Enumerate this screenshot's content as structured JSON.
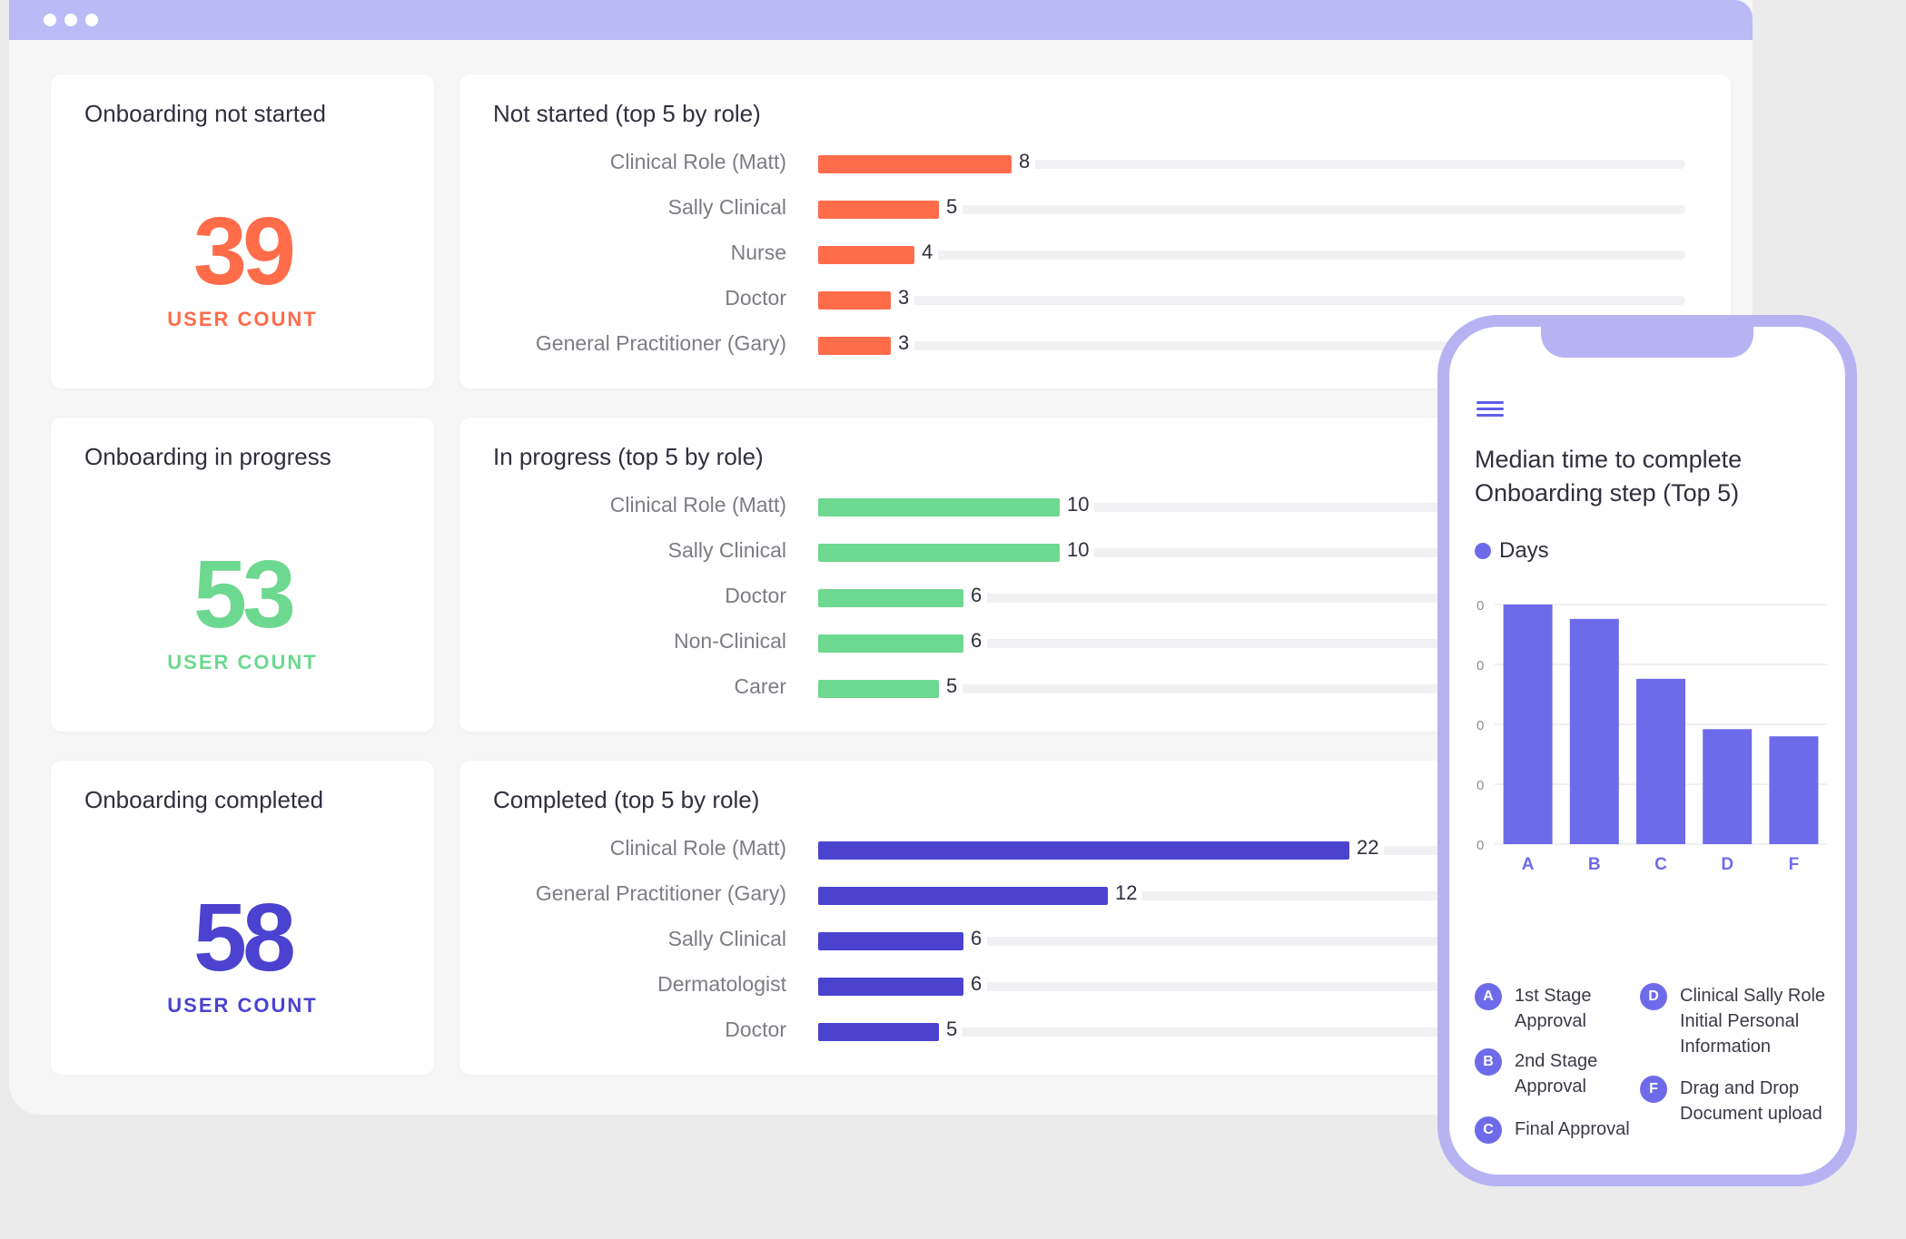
{
  "colors": {
    "not_started": "#fe6c4a",
    "in_progress": "#6dd88f",
    "completed": "#4b43cf",
    "phone_accent": "#6e6bea"
  },
  "sections": [
    {
      "stat_title": "Onboarding not started",
      "stat_value": "39",
      "stat_label": "USER COUNT",
      "chart_title": "Not started (top 5 by role)"
    },
    {
      "stat_title": "Onboarding in progress",
      "stat_value": "53",
      "stat_label": "USER COUNT",
      "chart_title": "In progress (top 5 by role)"
    },
    {
      "stat_title": "Onboarding completed",
      "stat_value": "58",
      "stat_label": "USER COUNT",
      "chart_title": "Completed (top 5 by role)"
    }
  ],
  "phone": {
    "title": "Median time to complete Onboarding step (Top 5)",
    "legend": "Days",
    "keys": [
      {
        "letter": "A",
        "text": "1st Stage Approval"
      },
      {
        "letter": "B",
        "text": "2nd Stage Approval"
      },
      {
        "letter": "C",
        "text": "Final Approval"
      },
      {
        "letter": "D",
        "text": "Clinical Sally Role Initial Personal Information"
      },
      {
        "letter": "F",
        "text": "Drag and Drop Document upload"
      }
    ]
  },
  "chart_data": [
    {
      "type": "bar",
      "title": "Not started (top 5 by role)",
      "categories": [
        "Clinical Role (Matt)",
        "Sally Clinical",
        "Nurse",
        "Doctor",
        "General Practitioner (Gary)"
      ],
      "values": [
        8,
        5,
        4,
        3,
        3
      ],
      "orientation": "horizontal"
    },
    {
      "type": "bar",
      "title": "In progress (top 5 by role)",
      "categories": [
        "Clinical Role (Matt)",
        "Sally Clinical",
        "Doctor",
        "Non-Clinical",
        "Carer"
      ],
      "values": [
        10,
        10,
        6,
        6,
        5
      ],
      "orientation": "horizontal"
    },
    {
      "type": "bar",
      "title": "Completed (top 5 by role)",
      "categories": [
        "Clinical Role (Matt)",
        "General Practitioner (Gary)",
        "Sally Clinical",
        "Dermatologist",
        "Doctor"
      ],
      "values": [
        22,
        12,
        6,
        6,
        5
      ],
      "orientation": "horizontal"
    },
    {
      "type": "bar",
      "title": "Median time to complete Onboarding step (Top 5)",
      "categories": [
        "A",
        "B",
        "C",
        "D",
        "F"
      ],
      "series": [
        {
          "name": "Days",
          "values": [
            1.0,
            0.94,
            0.69,
            0.48,
            0.45
          ]
        }
      ],
      "y_tick_labels": [
        "0",
        "0",
        "0",
        "0",
        "0"
      ],
      "grid": true,
      "legend": "top-left"
    }
  ]
}
